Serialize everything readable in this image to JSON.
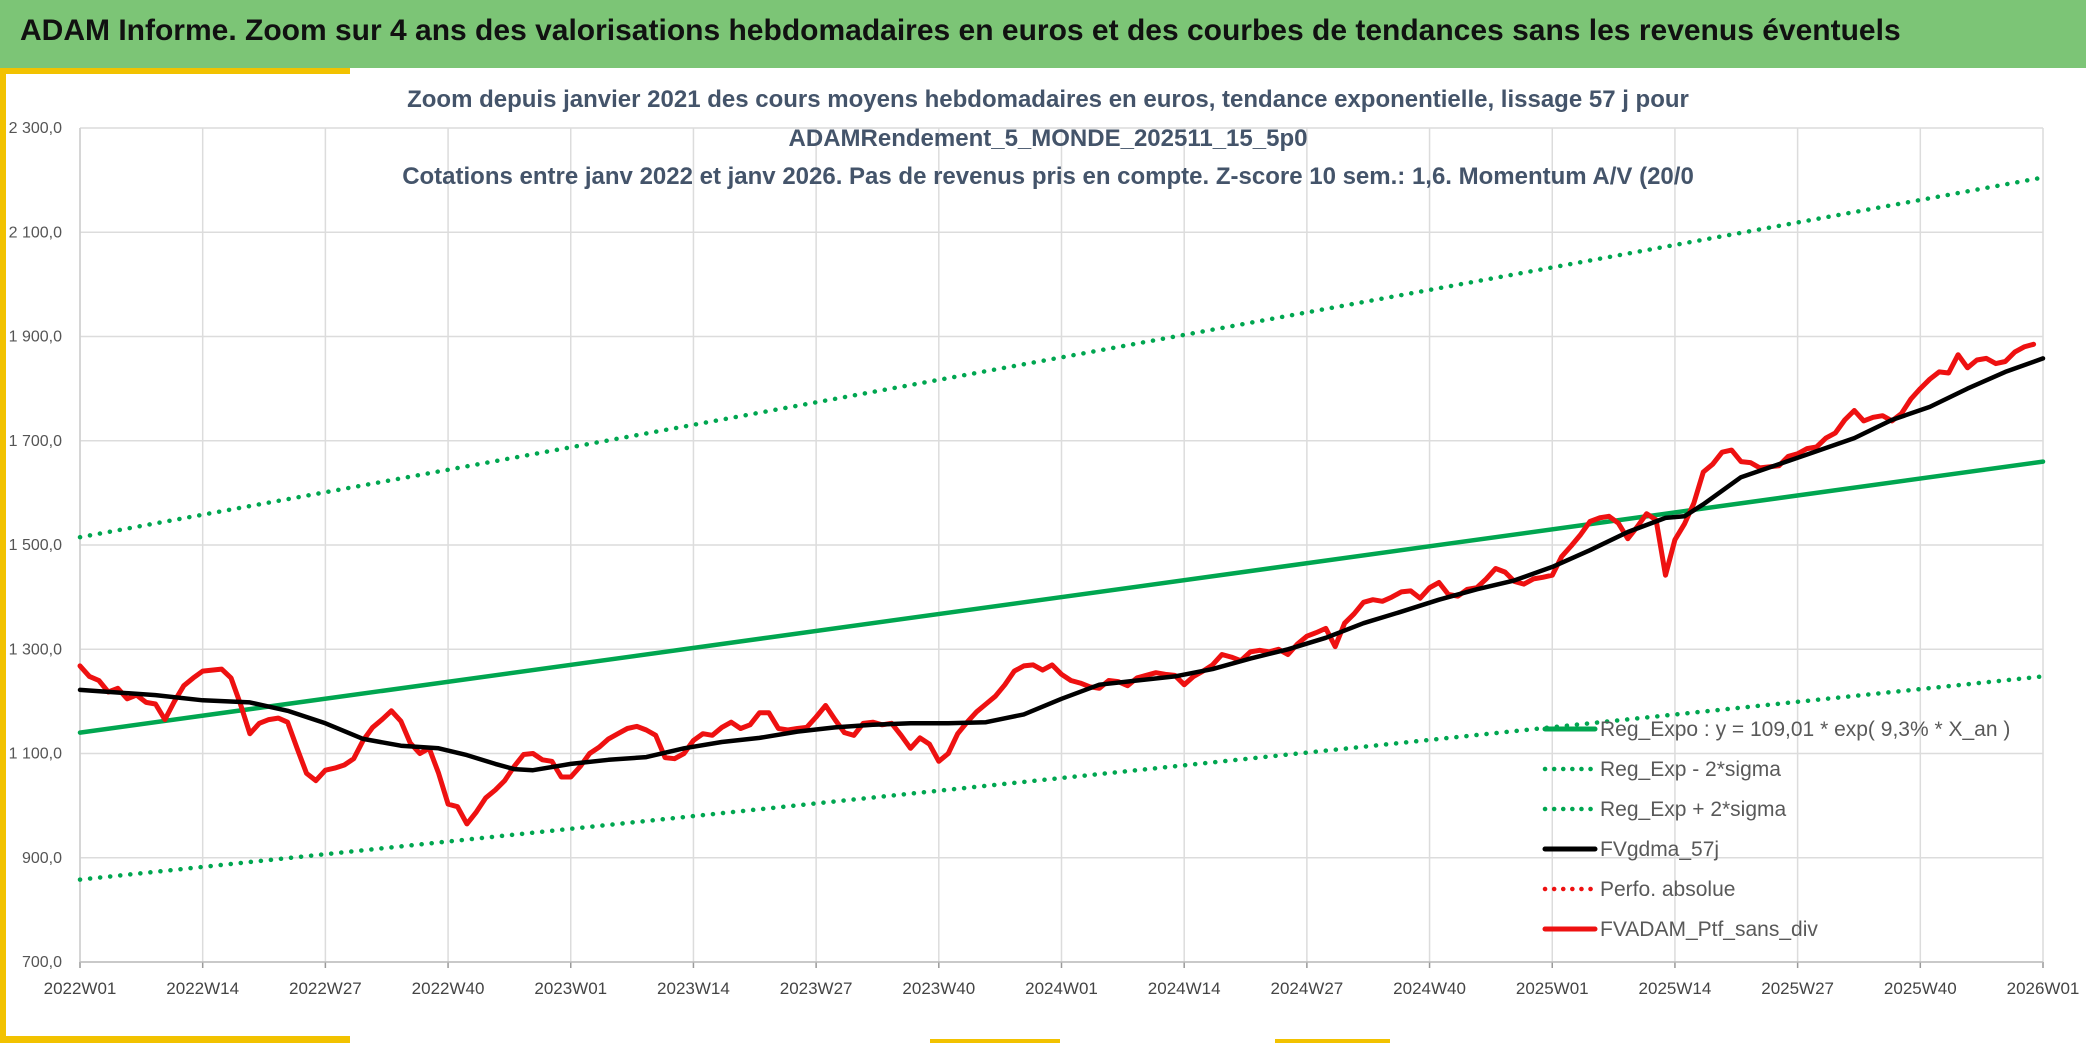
{
  "header": {
    "title": "ADAM Informe. Zoom sur 4 ans des valorisations hebdomadaires en euros et des courbes de tendances sans les revenus éventuels"
  },
  "colors": {
    "header_bg": "#7cc576",
    "accent": "#f2c200",
    "green": "#00a650",
    "red": "#ee1111",
    "black": "#000000"
  },
  "chart_data": {
    "type": "line",
    "title_lines": [
      "Zoom depuis janvier 2021 des cours moyens hebdomadaires en euros, tendance exponentielle, lissage 57 j pour",
      "ADAMRendement_5_MONDE_202511_15_5p0",
      "Cotations entre janv 2022 et janv 2026. Pas de revenus pris en compte. Z-score 10 sem.: 1,6. Momentum A/V (20/0"
    ],
    "xlabel": "",
    "ylabel": "",
    "ylim": [
      700,
      2300
    ],
    "y_ticks": [
      700,
      900,
      1100,
      1300,
      1500,
      1700,
      1900,
      2100,
      2300
    ],
    "y_tick_labels": [
      "700,0",
      "900,0",
      "1 100,0",
      "1 300,0",
      "1 500,0",
      "1 700,0",
      "1 900,0",
      "2 100,0",
      "2 300,0"
    ],
    "x_tick_labels": [
      "2022W01",
      "2022W14",
      "2022W27",
      "2022W40",
      "2023W01",
      "2023W14",
      "2023W27",
      "2023W40",
      "2024W01",
      "2024W14",
      "2024W27",
      "2024W40",
      "2025W01",
      "2025W14",
      "2025W27",
      "2025W40",
      "2026W01"
    ],
    "x_tick_weeks": [
      0,
      13,
      26,
      39,
      52,
      65,
      78,
      91,
      104,
      117,
      130,
      143,
      156,
      169,
      182,
      195,
      208
    ],
    "grid": true,
    "legend_position": "bottom-right",
    "series": [
      {
        "name": "Reg_Expo : y = 109,01 * exp( 9,3% *  X_an )",
        "color": "#00a650",
        "style": "solid",
        "points": [
          [
            0,
            1140
          ],
          [
            208,
            1660
          ]
        ]
      },
      {
        "name": "Reg_Exp - 2*sigma",
        "color": "#00a650",
        "style": "dotted",
        "points": [
          [
            0,
            858
          ],
          [
            208,
            1248
          ]
        ]
      },
      {
        "name": "Reg_Exp + 2*sigma",
        "color": "#00a650",
        "style": "dotted",
        "points": [
          [
            0,
            1515
          ],
          [
            208,
            2205
          ]
        ]
      },
      {
        "name": "FVgdma_57j",
        "color": "#000000",
        "style": "solid",
        "points": [
          [
            0,
            1222
          ],
          [
            8,
            1212
          ],
          [
            13,
            1202
          ],
          [
            18,
            1198
          ],
          [
            22,
            1182
          ],
          [
            26,
            1158
          ],
          [
            30,
            1128
          ],
          [
            34,
            1115
          ],
          [
            38,
            1110
          ],
          [
            41,
            1097
          ],
          [
            44,
            1080
          ],
          [
            46,
            1070
          ],
          [
            48,
            1068
          ],
          [
            52,
            1080
          ],
          [
            56,
            1088
          ],
          [
            60,
            1093
          ],
          [
            64,
            1110
          ],
          [
            68,
            1122
          ],
          [
            72,
            1130
          ],
          [
            76,
            1142
          ],
          [
            80,
            1150
          ],
          [
            84,
            1155
          ],
          [
            88,
            1158
          ],
          [
            92,
            1158
          ],
          [
            96,
            1160
          ],
          [
            100,
            1175
          ],
          [
            104,
            1205
          ],
          [
            108,
            1232
          ],
          [
            112,
            1240
          ],
          [
            116,
            1248
          ],
          [
            120,
            1262
          ],
          [
            124,
            1282
          ],
          [
            128,
            1300
          ],
          [
            132,
            1322
          ],
          [
            136,
            1350
          ],
          [
            140,
            1372
          ],
          [
            144,
            1395
          ],
          [
            148,
            1415
          ],
          [
            152,
            1432
          ],
          [
            156,
            1458
          ],
          [
            160,
            1490
          ],
          [
            164,
            1525
          ],
          [
            168,
            1552
          ],
          [
            170,
            1555
          ],
          [
            172,
            1578
          ],
          [
            176,
            1630
          ],
          [
            180,
            1655
          ],
          [
            184,
            1680
          ],
          [
            188,
            1705
          ],
          [
            192,
            1740
          ],
          [
            196,
            1765
          ],
          [
            200,
            1800
          ],
          [
            204,
            1832
          ],
          [
            208,
            1858
          ]
        ]
      },
      {
        "name": "Perfo. absolue",
        "color": "#ee1111",
        "style": "dotted",
        "points": []
      },
      {
        "name": "FVADAM_Ptf_sans_div",
        "color": "#ee1111",
        "style": "solid",
        "points": [
          [
            0,
            1268
          ],
          [
            1,
            1248
          ],
          [
            2,
            1240
          ],
          [
            3,
            1218
          ],
          [
            4,
            1225
          ],
          [
            5,
            1205
          ],
          [
            6,
            1212
          ],
          [
            7,
            1198
          ],
          [
            8,
            1195
          ],
          [
            9,
            1165
          ],
          [
            10,
            1200
          ],
          [
            11,
            1230
          ],
          [
            12,
            1245
          ],
          [
            13,
            1258
          ],
          [
            14,
            1260
          ],
          [
            15,
            1262
          ],
          [
            16,
            1245
          ],
          [
            17,
            1195
          ],
          [
            18,
            1138
          ],
          [
            19,
            1158
          ],
          [
            20,
            1165
          ],
          [
            21,
            1168
          ],
          [
            22,
            1160
          ],
          [
            23,
            1110
          ],
          [
            24,
            1062
          ],
          [
            25,
            1048
          ],
          [
            26,
            1068
          ],
          [
            27,
            1072
          ],
          [
            28,
            1078
          ],
          [
            29,
            1090
          ],
          [
            30,
            1125
          ],
          [
            31,
            1150
          ],
          [
            32,
            1165
          ],
          [
            33,
            1182
          ],
          [
            34,
            1162
          ],
          [
            35,
            1120
          ],
          [
            36,
            1100
          ],
          [
            37,
            1110
          ],
          [
            38,
            1062
          ],
          [
            39,
            1003
          ],
          [
            40,
            998
          ],
          [
            41,
            965
          ],
          [
            42,
            988
          ],
          [
            43,
            1015
          ],
          [
            44,
            1030
          ],
          [
            45,
            1048
          ],
          [
            46,
            1075
          ],
          [
            47,
            1098
          ],
          [
            48,
            1100
          ],
          [
            49,
            1088
          ],
          [
            50,
            1085
          ],
          [
            51,
            1055
          ],
          [
            52,
            1055
          ],
          [
            53,
            1075
          ],
          [
            54,
            1100
          ],
          [
            55,
            1112
          ],
          [
            56,
            1128
          ],
          [
            57,
            1138
          ],
          [
            58,
            1148
          ],
          [
            59,
            1152
          ],
          [
            60,
            1145
          ],
          [
            61,
            1135
          ],
          [
            62,
            1092
          ],
          [
            63,
            1090
          ],
          [
            64,
            1100
          ],
          [
            65,
            1125
          ],
          [
            66,
            1138
          ],
          [
            67,
            1135
          ],
          [
            68,
            1150
          ],
          [
            69,
            1160
          ],
          [
            70,
            1148
          ],
          [
            71,
            1155
          ],
          [
            72,
            1178
          ],
          [
            73,
            1178
          ],
          [
            74,
            1148
          ],
          [
            75,
            1145
          ],
          [
            76,
            1148
          ],
          [
            77,
            1150
          ],
          [
            78,
            1170
          ],
          [
            79,
            1192
          ],
          [
            80,
            1165
          ],
          [
            81,
            1140
          ],
          [
            82,
            1135
          ],
          [
            83,
            1158
          ],
          [
            84,
            1160
          ],
          [
            85,
            1155
          ],
          [
            86,
            1158
          ],
          [
            87,
            1135
          ],
          [
            88,
            1110
          ],
          [
            89,
            1130
          ],
          [
            90,
            1118
          ],
          [
            91,
            1085
          ],
          [
            92,
            1100
          ],
          [
            93,
            1138
          ],
          [
            94,
            1160
          ],
          [
            95,
            1180
          ],
          [
            96,
            1195
          ],
          [
            97,
            1210
          ],
          [
            98,
            1232
          ],
          [
            99,
            1258
          ],
          [
            100,
            1268
          ],
          [
            101,
            1270
          ],
          [
            102,
            1260
          ],
          [
            103,
            1270
          ],
          [
            104,
            1252
          ],
          [
            105,
            1240
          ],
          [
            106,
            1235
          ],
          [
            107,
            1228
          ],
          [
            108,
            1225
          ],
          [
            109,
            1240
          ],
          [
            110,
            1238
          ],
          [
            111,
            1230
          ],
          [
            112,
            1245
          ],
          [
            113,
            1250
          ],
          [
            114,
            1255
          ],
          [
            115,
            1252
          ],
          [
            116,
            1250
          ],
          [
            117,
            1232
          ],
          [
            118,
            1248
          ],
          [
            119,
            1258
          ],
          [
            120,
            1270
          ],
          [
            121,
            1290
          ],
          [
            122,
            1285
          ],
          [
            123,
            1278
          ],
          [
            124,
            1295
          ],
          [
            125,
            1298
          ],
          [
            126,
            1295
          ],
          [
            127,
            1300
          ],
          [
            128,
            1290
          ],
          [
            129,
            1310
          ],
          [
            130,
            1325
          ],
          [
            131,
            1332
          ],
          [
            132,
            1340
          ],
          [
            133,
            1305
          ],
          [
            134,
            1350
          ],
          [
            135,
            1368
          ],
          [
            136,
            1390
          ],
          [
            137,
            1395
          ],
          [
            138,
            1392
          ],
          [
            139,
            1400
          ],
          [
            140,
            1410
          ],
          [
            141,
            1412
          ],
          [
            142,
            1398
          ],
          [
            143,
            1418
          ],
          [
            144,
            1428
          ],
          [
            145,
            1405
          ],
          [
            146,
            1402
          ],
          [
            147,
            1415
          ],
          [
            148,
            1418
          ],
          [
            149,
            1435
          ],
          [
            150,
            1455
          ],
          [
            151,
            1448
          ],
          [
            152,
            1430
          ],
          [
            153,
            1425
          ],
          [
            154,
            1435
          ],
          [
            155,
            1438
          ],
          [
            156,
            1442
          ],
          [
            157,
            1478
          ],
          [
            158,
            1498
          ],
          [
            159,
            1520
          ],
          [
            160,
            1545
          ],
          [
            161,
            1552
          ],
          [
            162,
            1555
          ],
          [
            163,
            1542
          ],
          [
            164,
            1512
          ],
          [
            165,
            1535
          ],
          [
            166,
            1560
          ],
          [
            167,
            1548
          ],
          [
            168,
            1442
          ],
          [
            169,
            1510
          ],
          [
            170,
            1540
          ],
          [
            171,
            1580
          ],
          [
            172,
            1640
          ],
          [
            173,
            1655
          ],
          [
            174,
            1678
          ],
          [
            175,
            1682
          ],
          [
            176,
            1660
          ],
          [
            177,
            1658
          ],
          [
            178,
            1648
          ],
          [
            179,
            1650
          ],
          [
            180,
            1652
          ],
          [
            181,
            1670
          ],
          [
            182,
            1675
          ],
          [
            183,
            1685
          ],
          [
            184,
            1688
          ],
          [
            185,
            1705
          ],
          [
            186,
            1715
          ],
          [
            187,
            1740
          ],
          [
            188,
            1758
          ],
          [
            189,
            1738
          ],
          [
            190,
            1745
          ],
          [
            191,
            1748
          ],
          [
            192,
            1738
          ],
          [
            193,
            1752
          ],
          [
            194,
            1780
          ],
          [
            195,
            1800
          ],
          [
            196,
            1818
          ],
          [
            197,
            1832
          ],
          [
            198,
            1830
          ],
          [
            199,
            1865
          ],
          [
            200,
            1840
          ],
          [
            201,
            1855
          ],
          [
            202,
            1858
          ],
          [
            203,
            1848
          ],
          [
            204,
            1852
          ],
          [
            205,
            1870
          ],
          [
            206,
            1880
          ],
          [
            207,
            1885
          ]
        ]
      }
    ]
  }
}
